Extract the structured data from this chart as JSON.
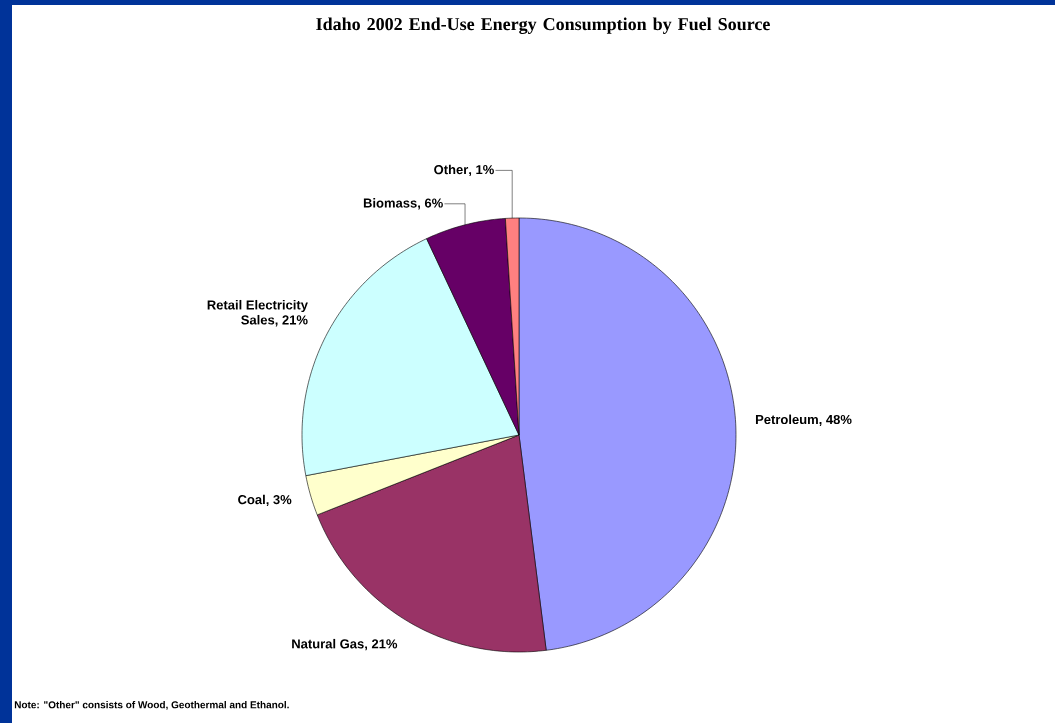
{
  "chart_data": {
    "type": "pie",
    "title": "Idaho 2002 End-Use Energy Consumption by Fuel Source",
    "categories": [
      "Petroleum",
      "Natural Gas",
      "Coal",
      "Retail Electricity Sales",
      "Biomass",
      "Other"
    ],
    "values": [
      48,
      21,
      3,
      21,
      6,
      1
    ],
    "value_labels": [
      ", 48%",
      ", 21%",
      ", 3%",
      ", 21%",
      ", 6%",
      ", 1%"
    ],
    "colors": [
      "#9999ff",
      "#993366",
      "#ffffcc",
      "#ccffff",
      "#660066",
      "#ff8080"
    ],
    "annotations": [
      "Note: \"Other\" consists of Wood, Geothermal and Ethanol."
    ]
  }
}
